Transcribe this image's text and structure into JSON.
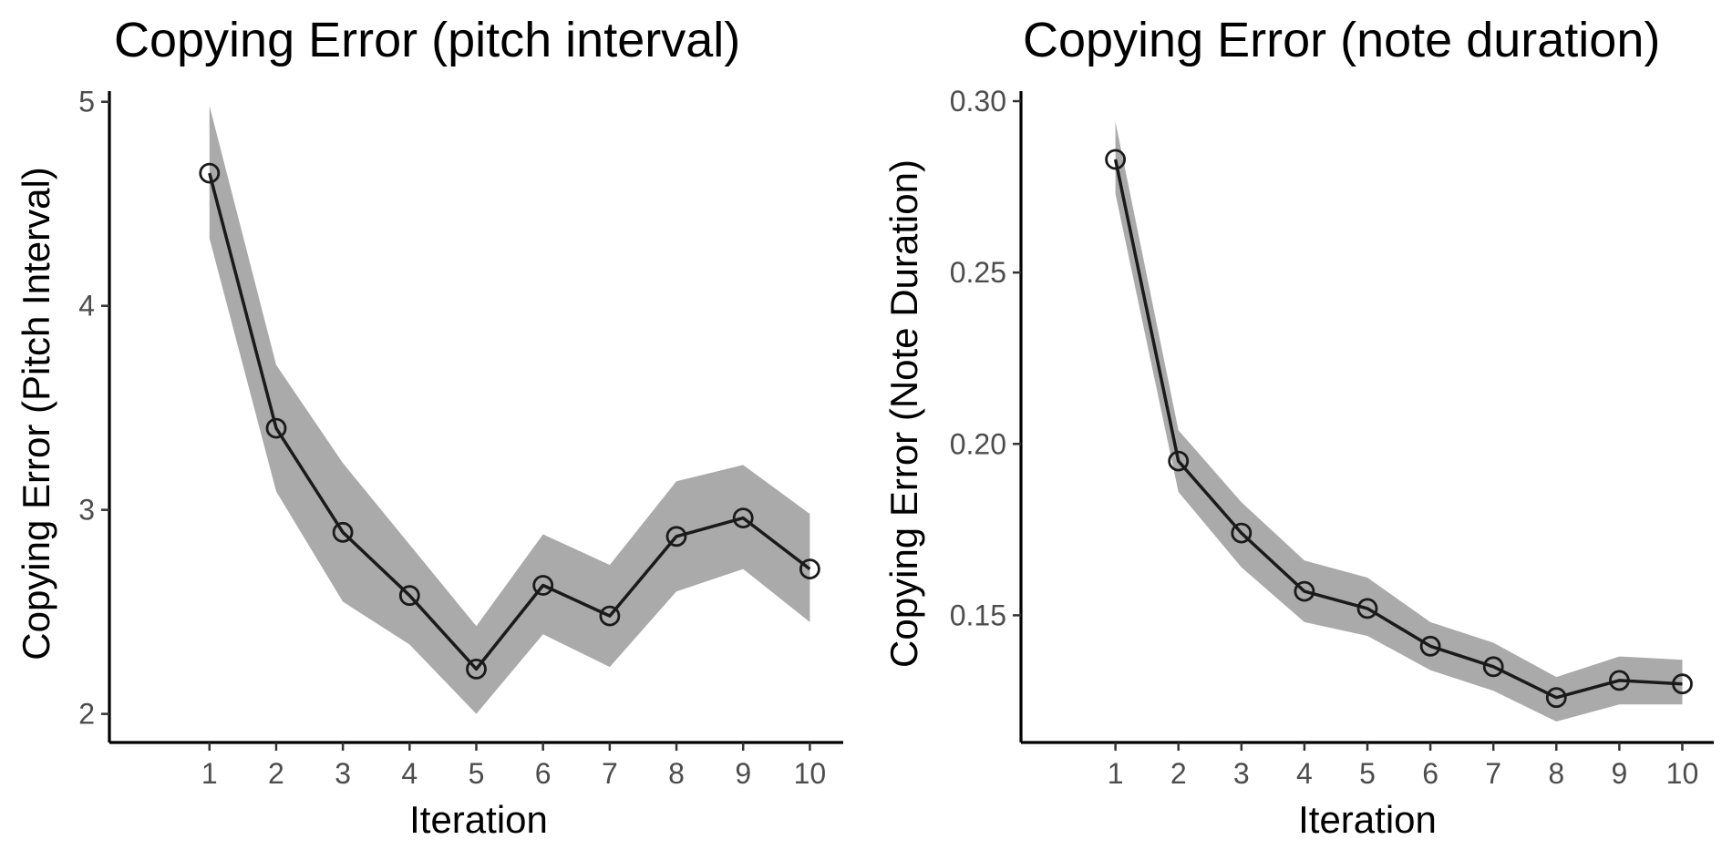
{
  "chart_data": [
    {
      "type": "line",
      "title": "Copying Error (pitch interval)",
      "xlabel": "Iteration",
      "ylabel": "Copying Error (Pitch Interval)",
      "x": [
        1,
        2,
        3,
        4,
        5,
        6,
        7,
        8,
        9,
        10
      ],
      "x_ticks": [
        "1",
        "2",
        "3",
        "4",
        "5",
        "6",
        "7",
        "8",
        "9",
        "10"
      ],
      "xlim": [
        -0.5,
        10.5
      ],
      "y_ticks": [
        "2",
        "3",
        "4",
        "5"
      ],
      "ylim": [
        1.86,
        5.03
      ],
      "series": [
        {
          "values": [
            4.65,
            3.4,
            2.89,
            2.58,
            2.22,
            2.63,
            2.48,
            2.87,
            2.96,
            2.71
          ],
          "lower": [
            4.33,
            3.09,
            2.55,
            2.34,
            2.0,
            2.39,
            2.23,
            2.6,
            2.71,
            2.45
          ],
          "upper": [
            4.98,
            3.71,
            3.23,
            2.83,
            2.43,
            2.88,
            2.73,
            3.14,
            3.22,
            2.98
          ]
        }
      ],
      "grid": false,
      "colors": {
        "line": "#1a1a1a",
        "ribbon": "#aaaaaa",
        "axis": "#000000"
      }
    },
    {
      "type": "line",
      "title": "Copying Error (note duration)",
      "xlabel": "Iteration",
      "ylabel": "Copying Error (Note Duration)",
      "x": [
        1,
        2,
        3,
        4,
        5,
        6,
        7,
        8,
        9,
        10
      ],
      "x_ticks": [
        "1",
        "2",
        "3",
        "4",
        "5",
        "6",
        "7",
        "8",
        "9",
        "10"
      ],
      "xlim": [
        -0.5,
        10.5
      ],
      "y_ticks": [
        "0.15",
        "0.20",
        "0.25",
        "0.30"
      ],
      "ylim": [
        0.1129,
        0.3016
      ],
      "series": [
        {
          "values": [
            0.283,
            0.195,
            0.174,
            0.157,
            0.152,
            0.141,
            0.135,
            0.126,
            0.131,
            0.13
          ],
          "lower": [
            0.273,
            0.186,
            0.164,
            0.148,
            0.144,
            0.134,
            0.128,
            0.119,
            0.124,
            0.124
          ],
          "upper": [
            0.294,
            0.204,
            0.183,
            0.166,
            0.161,
            0.148,
            0.142,
            0.132,
            0.138,
            0.137
          ]
        }
      ],
      "grid": false,
      "colors": {
        "line": "#1a1a1a",
        "ribbon": "#aaaaaa",
        "axis": "#000000"
      }
    }
  ]
}
